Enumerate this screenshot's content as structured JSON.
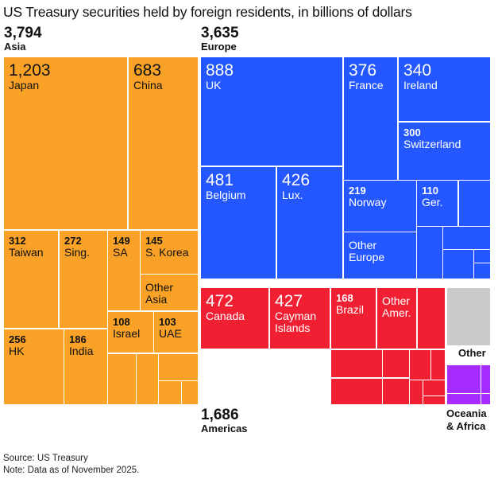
{
  "chart_data": {
    "type": "treemap",
    "title": "US Treasury securities held by foreign residents, in billions of dollars",
    "colors": {
      "Asia": "#F9A227",
      "Europe": "#2457FF",
      "Americas": "#F01F32",
      "Other": "#CACACA",
      "Oceania & Africa": "#A62CFF"
    },
    "regions": [
      {
        "name": "Asia",
        "total": "3,794",
        "items": [
          {
            "name": "Japan",
            "value": "1,203"
          },
          {
            "name": "China",
            "value": "683"
          },
          {
            "name": "Taiwan",
            "value": "312"
          },
          {
            "name": "Sing.",
            "value": "272"
          },
          {
            "name": "SA",
            "value": "149"
          },
          {
            "name": "S. Korea",
            "value": "145"
          },
          {
            "name": "Other Asia",
            "value": ""
          },
          {
            "name": "HK",
            "value": "256"
          },
          {
            "name": "India",
            "value": "186"
          },
          {
            "name": "Israel",
            "value": "108"
          },
          {
            "name": "UAE",
            "value": "103"
          }
        ]
      },
      {
        "name": "Europe",
        "total": "3,635",
        "items": [
          {
            "name": "UK",
            "value": "888"
          },
          {
            "name": "France",
            "value": "376"
          },
          {
            "name": "Ireland",
            "value": "340"
          },
          {
            "name": "Switzerland",
            "value": "300"
          },
          {
            "name": "Belgium",
            "value": "481"
          },
          {
            "name": "Lux.",
            "value": "426"
          },
          {
            "name": "Norway",
            "value": "219"
          },
          {
            "name": "Other Europe",
            "value": ""
          },
          {
            "name": "Ger.",
            "value": "110"
          }
        ]
      },
      {
        "name": "Americas",
        "total": "1,686",
        "items": [
          {
            "name": "Canada",
            "value": "472"
          },
          {
            "name": "Cayman Islands",
            "value": "427"
          },
          {
            "name": "Brazil",
            "value": "168"
          },
          {
            "name": "Other Amer.",
            "value": ""
          }
        ]
      },
      {
        "name": "Other",
        "total": "",
        "items": []
      },
      {
        "name": "Oceania & Africa",
        "total": "",
        "items": []
      }
    ]
  },
  "footer": {
    "source": "Source: US Treasury",
    "note": "Note: Data as of November 2025."
  }
}
